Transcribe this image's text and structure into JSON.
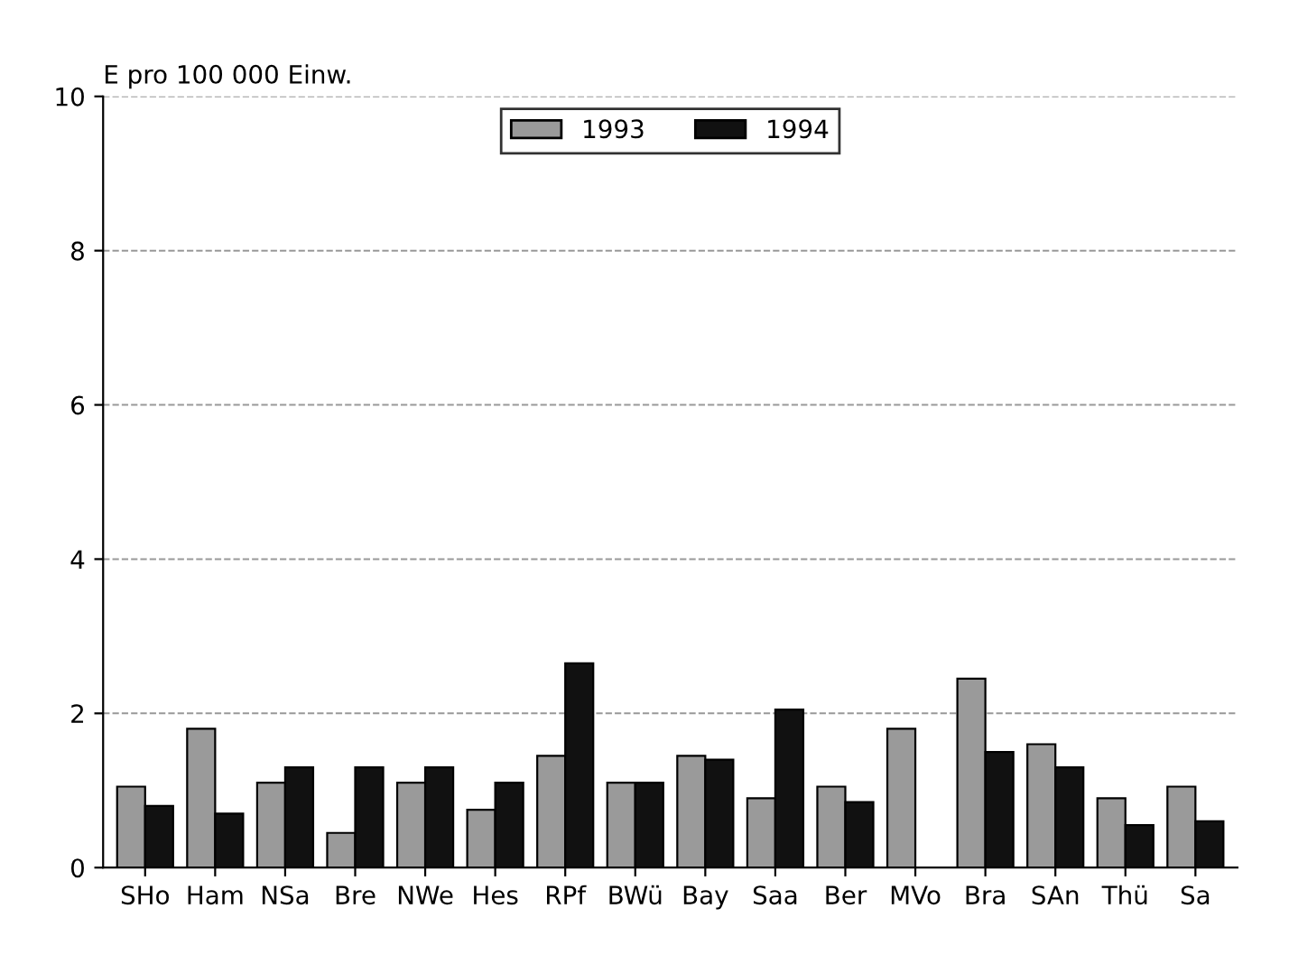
{
  "chart_data": {
    "type": "bar",
    "ylabel": "E pro 100 000 Einw.",
    "categories": [
      "SHo",
      "Ham",
      "NSa",
      "Bre",
      "NWe",
      "Hes",
      "RPf",
      "BWü",
      "Bay",
      "Saa",
      "Ber",
      "MVo",
      "Bra",
      "SAn",
      "Thü",
      "Sa"
    ],
    "series": [
      {
        "name": "1993",
        "color": "#9a9a9a",
        "values": [
          1.05,
          1.8,
          1.1,
          0.45,
          1.1,
          0.75,
          1.45,
          1.1,
          1.45,
          0.9,
          1.05,
          1.8,
          2.45,
          1.6,
          0.9,
          1.05
        ]
      },
      {
        "name": "1994",
        "color": "#111111",
        "values": [
          0.8,
          0.7,
          1.3,
          1.3,
          1.3,
          1.1,
          2.65,
          1.1,
          1.4,
          2.05,
          0.85,
          null,
          1.5,
          1.3,
          0.55,
          0.6
        ]
      }
    ],
    "ylim": [
      0,
      10
    ],
    "yticks": [
      0,
      2,
      4,
      6,
      8,
      10
    ],
    "grid": "y",
    "legend": "top"
  }
}
